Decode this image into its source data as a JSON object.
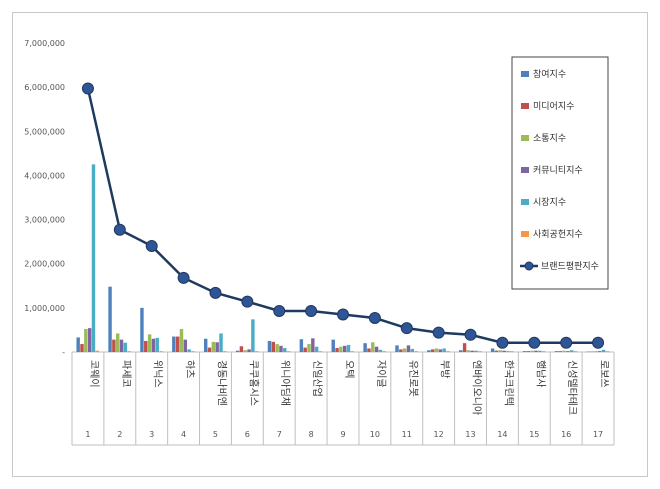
{
  "chart_data": {
    "type": "bar+line",
    "title": "",
    "xlabel": "",
    "ylabel": "",
    "ylim": [
      0,
      7000000
    ],
    "yticks": [
      "-",
      "1,000,000",
      "2,000,000",
      "3,000,000",
      "4,000,000",
      "5,000,000",
      "6,000,000",
      "7,000,000"
    ],
    "ytick_values": [
      0,
      1000000,
      2000000,
      3000000,
      4000000,
      5000000,
      6000000,
      7000000
    ],
    "ranks": [
      "1",
      "2",
      "3",
      "4",
      "5",
      "6",
      "7",
      "8",
      "9",
      "10",
      "11",
      "12",
      "13",
      "14",
      "15",
      "16",
      "17"
    ],
    "categories": [
      "코웨이",
      "파세코",
      "위닉스",
      "하츠",
      "경동나비엔",
      "쿠쿠홈시스",
      "위니아딤채",
      "신일산업",
      "오텍",
      "자이글",
      "유진로봇",
      "부방",
      "엔바이오니아",
      "한국크린텍",
      "행남사",
      "신성델타테크",
      "로보쓰"
    ],
    "series": [
      {
        "name": "참여지수",
        "color": "#4f81bd",
        "values": [
          330000,
          1480000,
          1000000,
          350000,
          300000,
          30000,
          250000,
          290000,
          280000,
          200000,
          150000,
          40000,
          40000,
          80000,
          20000,
          20000,
          10000
        ]
      },
      {
        "name": "미디어지수",
        "color": "#c0504d",
        "values": [
          180000,
          280000,
          250000,
          350000,
          100000,
          130000,
          230000,
          100000,
          90000,
          80000,
          60000,
          60000,
          200000,
          30000,
          20000,
          20000,
          10000
        ]
      },
      {
        "name": "소통지수",
        "color": "#9bbb59",
        "values": [
          520000,
          420000,
          400000,
          520000,
          230000,
          40000,
          180000,
          180000,
          120000,
          220000,
          80000,
          80000,
          40000,
          40000,
          30000,
          30000,
          20000
        ]
      },
      {
        "name": "커뮤니티지수",
        "color": "#8064a2",
        "values": [
          540000,
          280000,
          300000,
          280000,
          220000,
          60000,
          140000,
          310000,
          140000,
          120000,
          150000,
          60000,
          30000,
          30000,
          30000,
          20000,
          20000
        ]
      },
      {
        "name": "시장지수",
        "color": "#4bacc6",
        "values": [
          4250000,
          210000,
          320000,
          60000,
          420000,
          740000,
          90000,
          120000,
          160000,
          50000,
          70000,
          80000,
          30000,
          20000,
          30000,
          40000,
          50000
        ]
      },
      {
        "name": "사회공헌지수",
        "color": "#f79646",
        "values": [
          30000,
          20000,
          20000,
          20000,
          20000,
          20000,
          20000,
          20000,
          20000,
          20000,
          20000,
          20000,
          20000,
          20000,
          20000,
          20000,
          20000
        ]
      }
    ],
    "line": {
      "name": "브랜드평판지수",
      "color": "#1f3a5f",
      "values": [
        5970000,
        2770000,
        2400000,
        1680000,
        1340000,
        1140000,
        930000,
        930000,
        850000,
        770000,
        540000,
        440000,
        390000,
        210000,
        210000,
        210000,
        210000
      ]
    },
    "legend_position": "right"
  }
}
